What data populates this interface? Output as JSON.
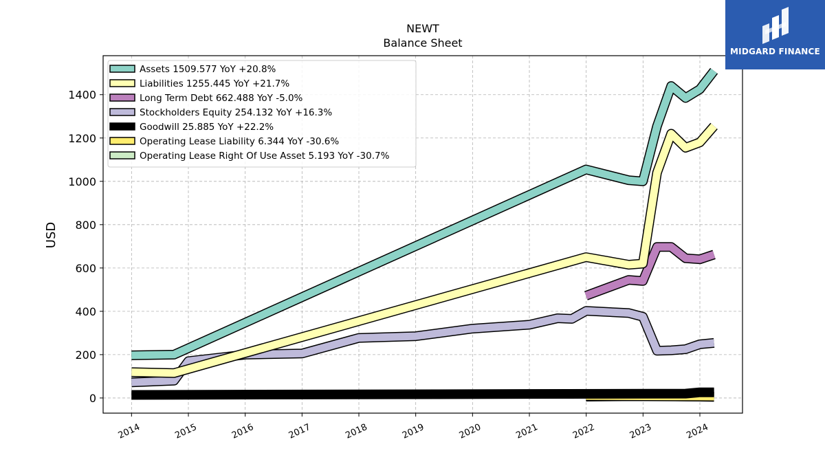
{
  "chart_data": {
    "type": "line",
    "title": "NEWT",
    "subtitle": "Balance  Sheet",
    "ylabel": "USD",
    "xlabel": "",
    "ylim": [
      -70,
      1580
    ],
    "yticks": [
      0,
      200,
      400,
      600,
      800,
      1000,
      1200,
      1400
    ],
    "xlim": [
      2013.5,
      2024.75
    ],
    "xticks": [
      "2014",
      "2015",
      "2016",
      "2017",
      "2018",
      "2019",
      "2020",
      "2021",
      "2022",
      "2023",
      "2024"
    ],
    "grid": true,
    "legend_position": "upper-left",
    "series": [
      {
        "name": "Assets",
        "legend_label": "Assets  1509.577 YoY +20.8%",
        "color": "#8dd3c7",
        "stroke_width": 11,
        "x": [
          "2014-01-01",
          "2014-10-01",
          "2021-12-31",
          "2022-10-01",
          "2022-12-31",
          "2023-04-01",
          "2023-07-01",
          "2023-10-01",
          "2024-01-01",
          "2024-04-01"
        ],
        "y": [
          197,
          200,
          1055,
          1005,
          1000,
          1255,
          1440,
          1385,
          1425,
          1510
        ]
      },
      {
        "name": "Liabilities",
        "legend_label": "Liabilities  1255.445 YoY +21.7%",
        "color": "#ffffb3",
        "stroke_width": 11,
        "x": [
          "2014-01-01",
          "2014-10-01",
          "2021-12-31",
          "2022-10-01",
          "2022-12-31",
          "2023-04-01",
          "2023-07-01",
          "2023-10-01",
          "2024-01-01",
          "2024-04-01"
        ],
        "y": [
          119,
          115,
          650,
          615,
          620,
          1040,
          1220,
          1155,
          1180,
          1255
        ]
      },
      {
        "name": "Long Term Debt",
        "legend_label": "Long Term Debt  662.488 YoY -5.0%",
        "color": "#bc80bd",
        "stroke_width": 11,
        "x": [
          "2021-12-31",
          "2022-10-01",
          "2022-12-31",
          "2023-04-01",
          "2023-07-01",
          "2023-10-01",
          "2024-01-01",
          "2024-04-01"
        ],
        "y": [
          472,
          545,
          540,
          697,
          697,
          645,
          640,
          662
        ]
      },
      {
        "name": "Stockholders Equity",
        "legend_label": "Stockholders Equity  254.132 YoY +16.3%",
        "color": "#bebada",
        "stroke_width": 11,
        "x": [
          "2014-01-01",
          "2014-10-01",
          "2015-01-01",
          "2016-01-01",
          "2017-01-01",
          "2018-01-01",
          "2019-01-01",
          "2020-01-01",
          "2021-01-01",
          "2021-07-01",
          "2021-10-01",
          "2022-01-01",
          "2022-10-01",
          "2022-12-31",
          "2023-04-01",
          "2023-07-01",
          "2023-10-01",
          "2024-01-01",
          "2024-04-01"
        ],
        "y": [
          72,
          80,
          170,
          200,
          205,
          277,
          285,
          320,
          338,
          368,
          365,
          402,
          392,
          375,
          218,
          220,
          225,
          248,
          254
        ]
      },
      {
        "name": "Goodwill",
        "legend_label": "Goodwill  25.885 YoY +22.2%",
        "color": "#000000",
        "stroke_width": 11,
        "x": [
          "2014-01-01",
          "2023-10-01",
          "2024-01-01",
          "2024-04-01"
        ],
        "y": [
          14,
          20,
          26,
          26
        ]
      },
      {
        "name": "Operating Lease Liability",
        "legend_label": "Operating Lease Liability  6.344 YoY -30.6%",
        "color": "#ffed6f",
        "stroke_width": 11,
        "x": [
          "2021-12-31",
          "2024-04-01"
        ],
        "y": [
          9,
          6
        ]
      },
      {
        "name": "Operating Lease Right Of Use Asset",
        "legend_label": "Operating Lease Right Of Use Asset  5.193 YoY -30.7%",
        "color": "#ccebc5",
        "stroke_width": 11,
        "x": [
          "2021-12-31",
          "2023-04-01",
          "2024-04-01"
        ],
        "y": [
          6,
          9,
          5
        ]
      }
    ]
  },
  "logo": {
    "text": "MIDGARD FINANCE",
    "background": "#2b5cb0",
    "icon": "midgard-logo-icon"
  }
}
